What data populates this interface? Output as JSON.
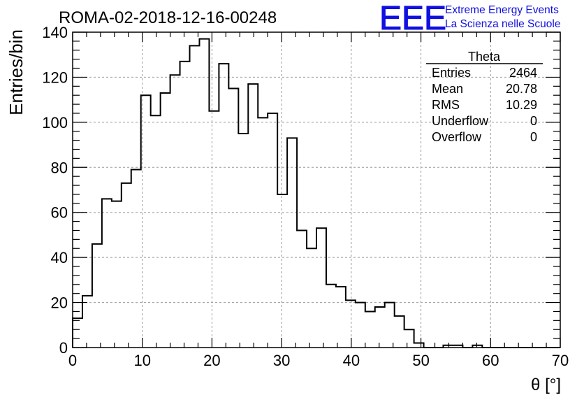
{
  "chart_data": {
    "type": "histogram",
    "title": "ROMA-02-2018-12-16-00248",
    "xlabel": "θ [°]",
    "ylabel": "Entries/bin",
    "xlim": [
      0,
      70
    ],
    "ylim": [
      0,
      140
    ],
    "xticks": [
      0,
      10,
      20,
      30,
      40,
      50,
      60,
      70
    ],
    "yticks": [
      0,
      20,
      40,
      60,
      80,
      100,
      120,
      140
    ],
    "grid": true,
    "bin_width": 1.4,
    "x_start": 0,
    "values": [
      13,
      23,
      46,
      66,
      65,
      73,
      79,
      112,
      103,
      113,
      121,
      127,
      134,
      137,
      105,
      126,
      115,
      95,
      117,
      102,
      104,
      68,
      93,
      52,
      44,
      53,
      28,
      27,
      21,
      20,
      16,
      18,
      20,
      14,
      8,
      2,
      0,
      0,
      1,
      1,
      0,
      1,
      0,
      0,
      0,
      0,
      0,
      0,
      0,
      0
    ],
    "stats_box": {
      "name": "Theta",
      "rows": [
        {
          "label": "Entries",
          "value": "2464"
        },
        {
          "label": "Mean",
          "value": "20.78"
        },
        {
          "label": "RMS",
          "value": "10.29"
        },
        {
          "label": "Underflow",
          "value": "0"
        },
        {
          "label": "Overflow",
          "value": "0"
        }
      ]
    }
  },
  "logo": {
    "text": "EEE",
    "line1": "Extreme Energy Events",
    "line2": "La Scienza nelle Scuole",
    "color": "#1010e0"
  }
}
